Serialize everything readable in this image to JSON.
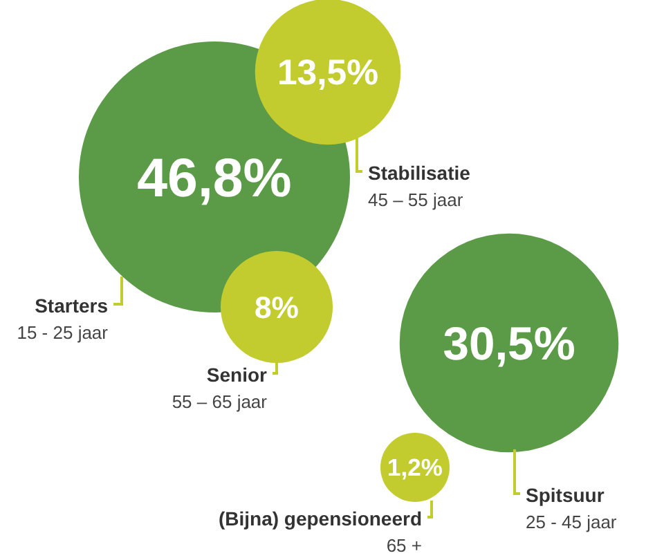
{
  "chart_data": {
    "type": "other",
    "categories": [
      "Starters\n15 - 25 jaar",
      "Stabilisatie\n45 – 55 jaar",
      "Senior\n55 – 65 jaar",
      "Spitsuur\n25 - 45 jaar",
      "(Bijna) gepensioneerd\n65 +"
    ],
    "values": [
      46.8,
      13.5,
      8,
      30.5,
      1.2
    ],
    "value_labels": [
      "46,8%",
      "13,5%",
      "8%",
      "30,5%",
      "1,2%"
    ],
    "colors": [
      "#5b9b48",
      "#c2cc2e",
      "#c2cc2e",
      "#5b9b48",
      "#c2cc2e"
    ]
  }
}
